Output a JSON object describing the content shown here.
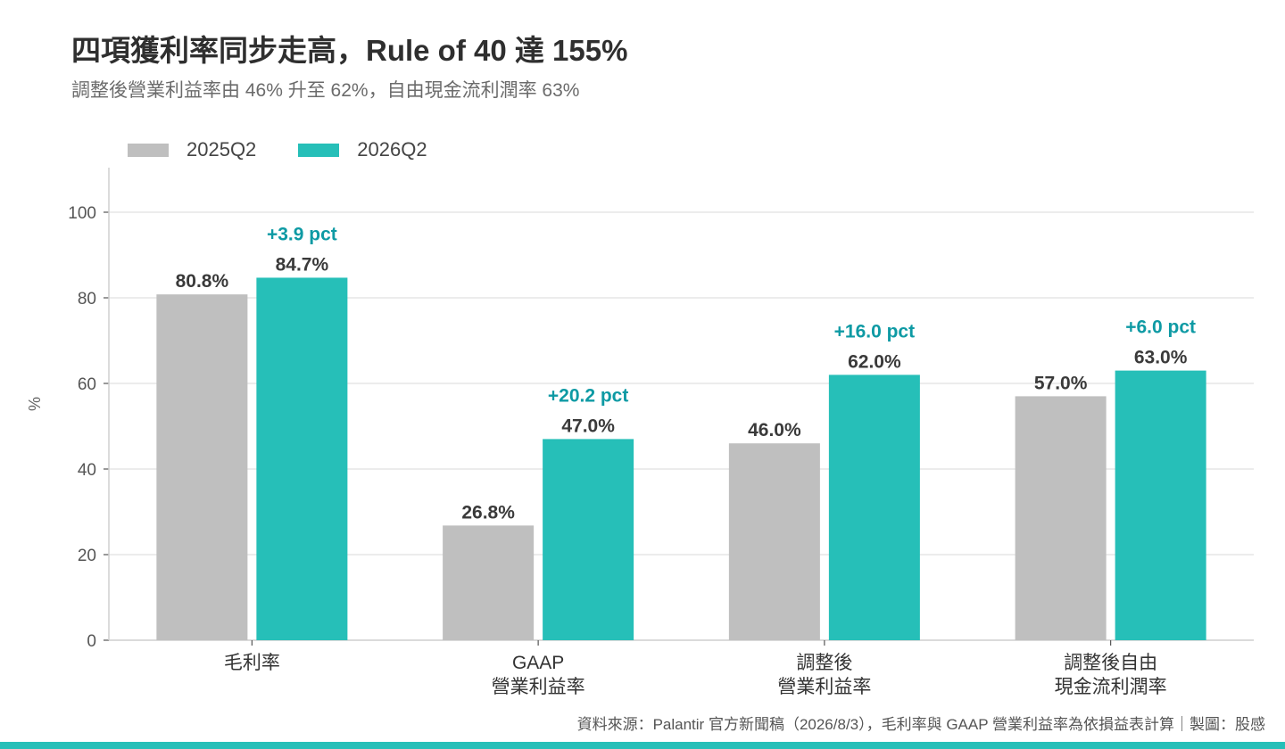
{
  "title": "四項獲利率同步走高，Rule of 40 達 155%",
  "subtitle": "調整後營業利益率由 46% 升至 62%，自由現金流利潤率 63%",
  "footnote": "資料來源：Palantir 官方新聞稿（2026/8/3），毛利率與 GAAP 營業利益率為依損益表計算｜製圖：股感",
  "colors": {
    "series_2025": "#bfbfbf",
    "series_2026": "#26bfb8",
    "delta_text": "#0e9aa4",
    "bottom_bar": "#26bfb8",
    "grid": "#e6e6e6"
  },
  "chart_data": {
    "type": "bar",
    "ylabel": "%",
    "ylim": [
      0,
      110
    ],
    "yticks": [
      0,
      20,
      40,
      60,
      80,
      100
    ],
    "grid": true,
    "legend_position": "top-left",
    "categories": [
      [
        "毛利率"
      ],
      [
        "GAAP",
        "營業利益率"
      ],
      [
        "調整後",
        "營業利益率"
      ],
      [
        "調整後自由",
        "現金流利潤率"
      ]
    ],
    "series": [
      {
        "name": "2025Q2",
        "values": [
          80.8,
          26.8,
          46.0,
          57.0
        ],
        "labels": [
          "80.8%",
          "26.8%",
          "46.0%",
          "57.0%"
        ]
      },
      {
        "name": "2026Q2",
        "values": [
          84.7,
          47.0,
          62.0,
          63.0
        ],
        "labels": [
          "84.7%",
          "47.0%",
          "62.0%",
          "63.0%"
        ]
      }
    ],
    "annotations": [
      "+3.9 pct",
      "+20.2 pct",
      "+16.0 pct",
      "+6.0 pct"
    ]
  }
}
